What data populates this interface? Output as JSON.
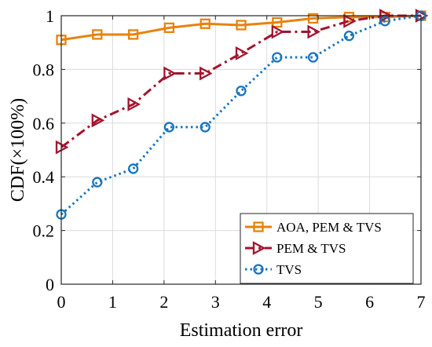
{
  "chart_data": {
    "type": "line",
    "xlabel": "Estimation error",
    "ylabel": "CDF(×100%)",
    "xlim": [
      0,
      7
    ],
    "ylim": [
      0,
      1
    ],
    "xticks": [
      0,
      1,
      2,
      3,
      4,
      5,
      6,
      7
    ],
    "xtick_labels": [
      "0",
      "1",
      "2",
      "3",
      "4",
      "5",
      "6",
      "7"
    ],
    "yticks": [
      0,
      0.2,
      0.4,
      0.6,
      0.8,
      1
    ],
    "ytick_labels": [
      "0",
      "0.2",
      "0.4",
      "0.6",
      "0.8",
      "1"
    ],
    "grid": true,
    "legend_position": "bottom-right",
    "series": [
      {
        "name": "AOA, PEM & TVS",
        "color": "#e8820c",
        "line_style": "solid",
        "marker": "square",
        "x": [
          0,
          0.7,
          1.4,
          2.1,
          2.8,
          3.5,
          4.2,
          4.9,
          5.6,
          6.3,
          7
        ],
        "y": [
          0.91,
          0.93,
          0.93,
          0.955,
          0.97,
          0.965,
          0.975,
          0.99,
          0.995,
          0.995,
          1.0
        ]
      },
      {
        "name": "PEM & TVS",
        "color": "#a3142e",
        "line_style": "dashdot",
        "marker": "triangle-right",
        "x": [
          0,
          0.7,
          1.4,
          2.1,
          2.8,
          3.5,
          4.2,
          4.9,
          5.6,
          6.3,
          7
        ],
        "y": [
          0.51,
          0.61,
          0.67,
          0.785,
          0.785,
          0.86,
          0.94,
          0.94,
          0.98,
          1.0,
          1.0
        ]
      },
      {
        "name": "TVS",
        "color": "#1a75bc",
        "line_style": "dotted",
        "marker": "circle",
        "x": [
          0,
          0.7,
          1.4,
          2.1,
          2.8,
          3.5,
          4.2,
          4.9,
          5.6,
          6.3,
          7
        ],
        "y": [
          0.26,
          0.38,
          0.43,
          0.585,
          0.585,
          0.72,
          0.845,
          0.845,
          0.925,
          0.98,
          1.0
        ]
      }
    ]
  }
}
